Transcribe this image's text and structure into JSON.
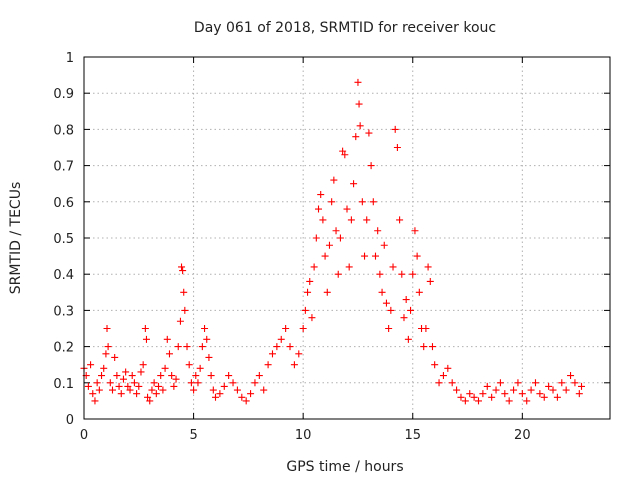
{
  "chart_data": {
    "type": "scatter",
    "title": "Day 061 of 2018, SRMTID for receiver kouc",
    "xlabel": "GPS time / hours",
    "ylabel": "SRMTID / TECUs",
    "xlim": [
      0,
      24
    ],
    "ylim": [
      0,
      1
    ],
    "xticks": [
      "0",
      "5",
      "10",
      "15",
      "20"
    ],
    "yticks": [
      "0",
      "0.1",
      "0.2",
      "0.3",
      "0.4",
      "0.5",
      "0.6",
      "0.7",
      "0.8",
      "0.9",
      "1"
    ],
    "marker": "plus",
    "color": "#ff0000",
    "grid": true,
    "series": [
      {
        "name": "SRMTID",
        "points": [
          [
            0.0,
            0.14
          ],
          [
            0.1,
            0.12
          ],
          [
            0.2,
            0.09
          ],
          [
            0.3,
            0.15
          ],
          [
            0.4,
            0.07
          ],
          [
            0.5,
            0.05
          ],
          [
            0.6,
            0.1
          ],
          [
            0.7,
            0.08
          ],
          [
            0.8,
            0.12
          ],
          [
            0.9,
            0.14
          ],
          [
            1.0,
            0.18
          ],
          [
            1.05,
            0.25
          ],
          [
            1.1,
            0.2
          ],
          [
            1.2,
            0.1
          ],
          [
            1.3,
            0.08
          ],
          [
            1.4,
            0.17
          ],
          [
            1.5,
            0.12
          ],
          [
            1.6,
            0.09
          ],
          [
            1.7,
            0.07
          ],
          [
            1.8,
            0.11
          ],
          [
            1.9,
            0.13
          ],
          [
            2.0,
            0.09
          ],
          [
            2.1,
            0.08
          ],
          [
            2.2,
            0.12
          ],
          [
            2.3,
            0.1
          ],
          [
            2.4,
            0.07
          ],
          [
            2.5,
            0.09
          ],
          [
            2.6,
            0.13
          ],
          [
            2.7,
            0.15
          ],
          [
            2.8,
            0.25
          ],
          [
            2.85,
            0.22
          ],
          [
            2.9,
            0.06
          ],
          [
            3.0,
            0.05
          ],
          [
            3.1,
            0.08
          ],
          [
            3.2,
            0.1
          ],
          [
            3.3,
            0.07
          ],
          [
            3.4,
            0.09
          ],
          [
            3.5,
            0.12
          ],
          [
            3.6,
            0.08
          ],
          [
            3.7,
            0.14
          ],
          [
            3.8,
            0.22
          ],
          [
            3.9,
            0.18
          ],
          [
            4.0,
            0.12
          ],
          [
            4.1,
            0.09
          ],
          [
            4.2,
            0.11
          ],
          [
            4.3,
            0.2
          ],
          [
            4.4,
            0.27
          ],
          [
            4.45,
            0.42
          ],
          [
            4.5,
            0.41
          ],
          [
            4.55,
            0.35
          ],
          [
            4.6,
            0.3
          ],
          [
            4.7,
            0.2
          ],
          [
            4.8,
            0.15
          ],
          [
            4.9,
            0.1
          ],
          [
            5.0,
            0.08
          ],
          [
            5.1,
            0.12
          ],
          [
            5.2,
            0.1
          ],
          [
            5.3,
            0.14
          ],
          [
            5.4,
            0.2
          ],
          [
            5.5,
            0.25
          ],
          [
            5.6,
            0.22
          ],
          [
            5.7,
            0.17
          ],
          [
            5.8,
            0.12
          ],
          [
            5.9,
            0.08
          ],
          [
            6.0,
            0.06
          ],
          [
            6.2,
            0.07
          ],
          [
            6.4,
            0.09
          ],
          [
            6.6,
            0.12
          ],
          [
            6.8,
            0.1
          ],
          [
            7.0,
            0.08
          ],
          [
            7.2,
            0.06
          ],
          [
            7.4,
            0.05
          ],
          [
            7.6,
            0.07
          ],
          [
            7.8,
            0.1
          ],
          [
            8.0,
            0.12
          ],
          [
            8.2,
            0.08
          ],
          [
            8.4,
            0.15
          ],
          [
            8.6,
            0.18
          ],
          [
            8.8,
            0.2
          ],
          [
            9.0,
            0.22
          ],
          [
            9.2,
            0.25
          ],
          [
            9.4,
            0.2
          ],
          [
            9.6,
            0.15
          ],
          [
            9.8,
            0.18
          ],
          [
            10.0,
            0.25
          ],
          [
            10.1,
            0.3
          ],
          [
            10.2,
            0.35
          ],
          [
            10.3,
            0.38
          ],
          [
            10.4,
            0.28
          ],
          [
            10.5,
            0.42
          ],
          [
            10.6,
            0.5
          ],
          [
            10.7,
            0.58
          ],
          [
            10.8,
            0.62
          ],
          [
            10.9,
            0.55
          ],
          [
            11.0,
            0.45
          ],
          [
            11.1,
            0.35
          ],
          [
            11.2,
            0.48
          ],
          [
            11.3,
            0.6
          ],
          [
            11.4,
            0.66
          ],
          [
            11.5,
            0.52
          ],
          [
            11.6,
            0.4
          ],
          [
            11.7,
            0.5
          ],
          [
            11.8,
            0.74
          ],
          [
            11.9,
            0.73
          ],
          [
            12.0,
            0.58
          ],
          [
            12.1,
            0.42
          ],
          [
            12.2,
            0.55
          ],
          [
            12.3,
            0.65
          ],
          [
            12.4,
            0.78
          ],
          [
            12.5,
            0.93
          ],
          [
            12.55,
            0.87
          ],
          [
            12.6,
            0.81
          ],
          [
            12.7,
            0.6
          ],
          [
            12.8,
            0.45
          ],
          [
            12.9,
            0.55
          ],
          [
            13.0,
            0.79
          ],
          [
            13.1,
            0.7
          ],
          [
            13.2,
            0.6
          ],
          [
            13.3,
            0.45
          ],
          [
            13.4,
            0.52
          ],
          [
            13.5,
            0.4
          ],
          [
            13.6,
            0.35
          ],
          [
            13.7,
            0.48
          ],
          [
            13.8,
            0.32
          ],
          [
            13.9,
            0.25
          ],
          [
            14.0,
            0.3
          ],
          [
            14.1,
            0.42
          ],
          [
            14.2,
            0.8
          ],
          [
            14.3,
            0.75
          ],
          [
            14.4,
            0.55
          ],
          [
            14.5,
            0.4
          ],
          [
            14.6,
            0.28
          ],
          [
            14.7,
            0.33
          ],
          [
            14.8,
            0.22
          ],
          [
            14.9,
            0.3
          ],
          [
            15.0,
            0.4
          ],
          [
            15.1,
            0.52
          ],
          [
            15.2,
            0.45
          ],
          [
            15.3,
            0.35
          ],
          [
            15.4,
            0.25
          ],
          [
            15.5,
            0.2
          ],
          [
            15.6,
            0.25
          ],
          [
            15.7,
            0.42
          ],
          [
            15.8,
            0.38
          ],
          [
            15.9,
            0.2
          ],
          [
            16.0,
            0.15
          ],
          [
            16.2,
            0.1
          ],
          [
            16.4,
            0.12
          ],
          [
            16.6,
            0.14
          ],
          [
            16.8,
            0.1
          ],
          [
            17.0,
            0.08
          ],
          [
            17.2,
            0.06
          ],
          [
            17.4,
            0.05
          ],
          [
            17.6,
            0.07
          ],
          [
            17.8,
            0.06
          ],
          [
            18.0,
            0.05
          ],
          [
            18.2,
            0.07
          ],
          [
            18.4,
            0.09
          ],
          [
            18.6,
            0.06
          ],
          [
            18.8,
            0.08
          ],
          [
            19.0,
            0.1
          ],
          [
            19.2,
            0.07
          ],
          [
            19.4,
            0.05
          ],
          [
            19.6,
            0.08
          ],
          [
            19.8,
            0.1
          ],
          [
            20.0,
            0.07
          ],
          [
            20.2,
            0.05
          ],
          [
            20.4,
            0.08
          ],
          [
            20.6,
            0.1
          ],
          [
            20.8,
            0.07
          ],
          [
            21.0,
            0.06
          ],
          [
            21.2,
            0.09
          ],
          [
            21.4,
            0.08
          ],
          [
            21.6,
            0.06
          ],
          [
            21.8,
            0.1
          ],
          [
            22.0,
            0.08
          ],
          [
            22.2,
            0.12
          ],
          [
            22.4,
            0.1
          ],
          [
            22.6,
            0.07
          ],
          [
            22.7,
            0.09
          ]
        ]
      }
    ]
  }
}
